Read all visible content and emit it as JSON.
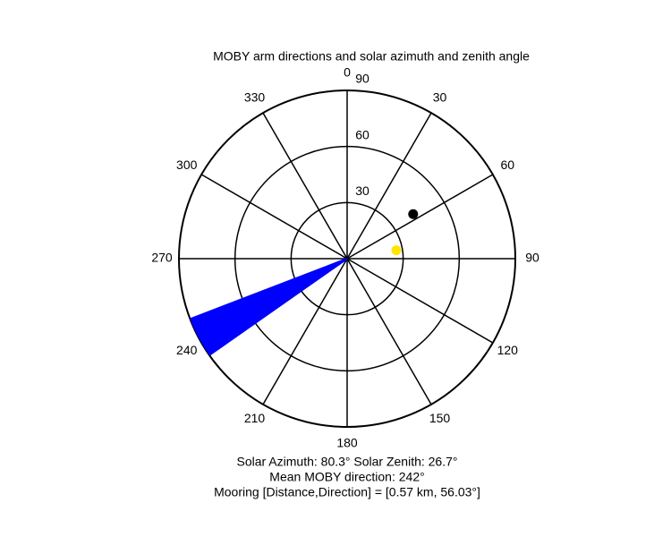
{
  "chart_data": {
    "type": "polar",
    "title": "MOBY arm directions and solar azimuth and zenith angle",
    "theta_direction": "clockwise",
    "theta_zero": "top",
    "thetaticks": [
      0,
      30,
      60,
      90,
      120,
      150,
      180,
      210,
      240,
      270,
      300,
      330
    ],
    "rlim": [
      0,
      90
    ],
    "rticks": [
      30,
      60,
      90
    ],
    "series": [
      {
        "style": "line",
        "color": "#0000ff",
        "theta": [
          235,
          235.5,
          236,
          236.5,
          237,
          237.5,
          238,
          238.5,
          239,
          239.5,
          240,
          240.5,
          241,
          241.5,
          242,
          242.5,
          243,
          243.5,
          244,
          244.5,
          245,
          245.5,
          246,
          246.5,
          247,
          247.5,
          248,
          248.5,
          249
        ],
        "r": [
          90,
          90,
          90,
          90,
          90,
          90,
          90,
          90,
          90,
          90,
          90,
          90,
          90,
          90,
          90,
          90,
          90,
          90,
          90,
          90,
          90,
          90,
          90,
          90,
          90,
          90,
          90,
          90,
          90
        ]
      },
      {
        "style": "point",
        "color": "#ffe600",
        "theta": [
          80.3
        ],
        "r": [
          26.7
        ]
      },
      {
        "style": "point",
        "color": "#000000",
        "theta": [
          56.03
        ],
        "r": [
          42.6
        ]
      }
    ],
    "annotations": [
      "Solar Azimuth: 80.3°    Solar Zenith: 26.7°",
      "Mean MOBY direction: 242°",
      "Mooring [Distance,Direction] = [0.57 km, 56.03°]"
    ]
  }
}
